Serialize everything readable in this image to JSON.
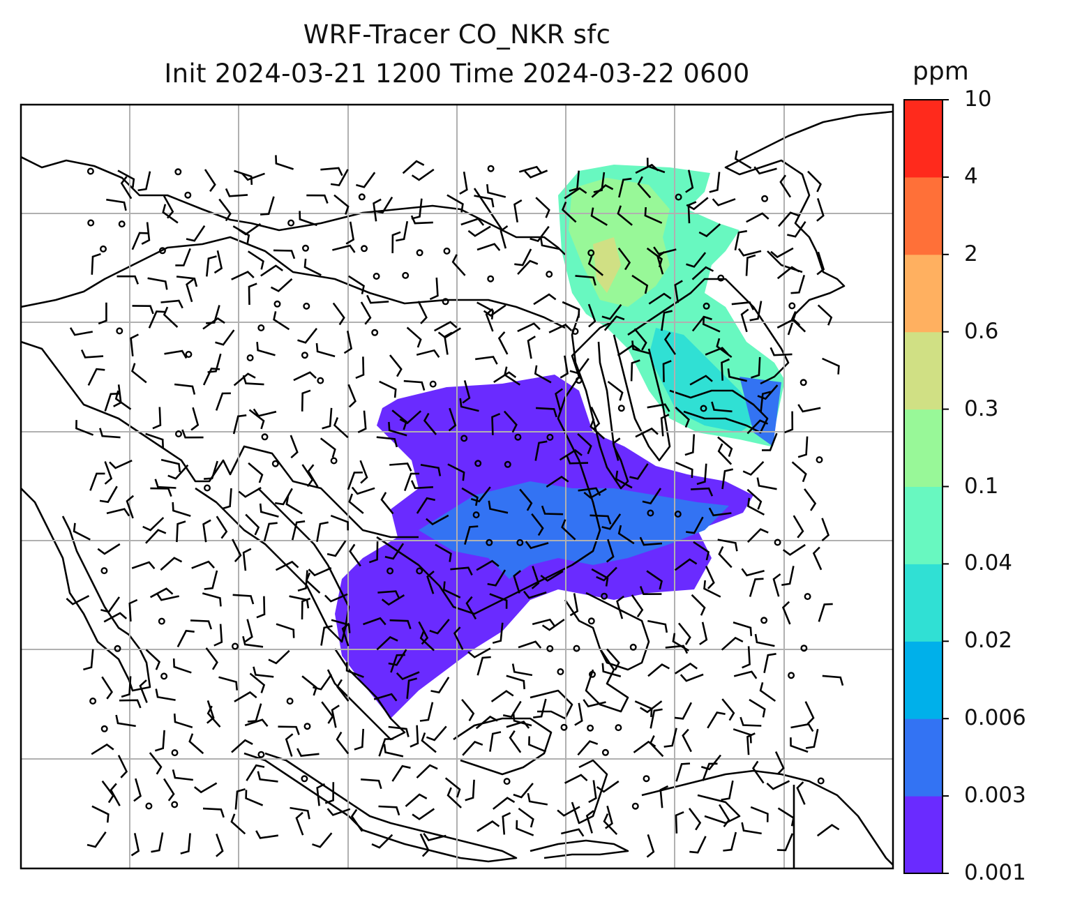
{
  "figure": {
    "title_line1": "WRF-Tracer CO_NKR sfc",
    "title_line2": "Init 2024-03-21 1200 Time 2024-03-22 0600"
  },
  "colorbar": {
    "unit": "ppm",
    "levels": [
      "0.001",
      "0.003",
      "0.006",
      "0.02",
      "0.04",
      "0.1",
      "0.3",
      "0.6",
      "2",
      "4",
      "10"
    ],
    "colors": [
      "#6a2bff",
      "#3373f3",
      "#00b0ea",
      "#30e0d4",
      "#68f8c0",
      "#98f898",
      "#d0e084",
      "#ffb060",
      "#ff7038",
      "#ff2a1c"
    ]
  },
  "map": {
    "gridlines": true,
    "coastlines": true,
    "wind_barbs": true,
    "calm_symbol": "open-circle"
  }
}
